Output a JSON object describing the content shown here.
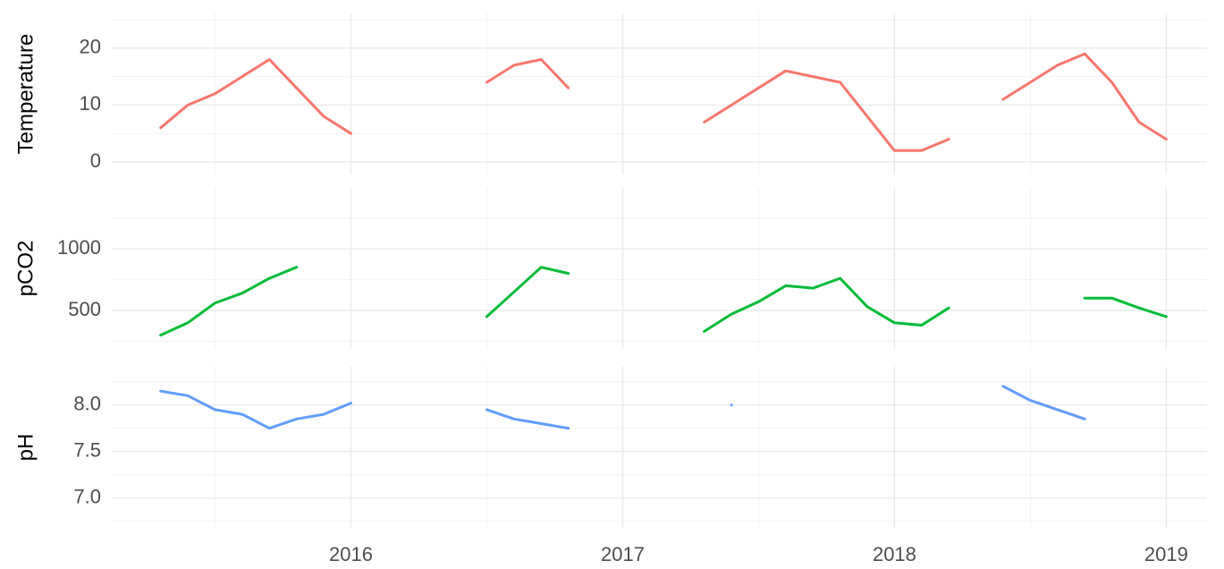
{
  "chart_data": [
    {
      "type": "line",
      "y_label": "Temperature",
      "color": "#f8766d",
      "x": [
        2015.3,
        2015.4,
        2015.5,
        2015.6,
        2015.7,
        2015.8,
        2015.9,
        2016.0,
        2016.1,
        2016.2,
        2016.3,
        2016.4,
        2016.5,
        2016.6,
        2016.7,
        2016.8,
        2016.9,
        2017.0,
        2017.1,
        2017.2,
        2017.3,
        2017.4,
        2017.5,
        2017.6,
        2017.7,
        2017.8,
        2017.9,
        2018.0,
        2018.1,
        2018.2,
        2018.3,
        2018.4,
        2018.5,
        2018.6,
        2018.7,
        2018.8,
        2018.9,
        2019.0
      ],
      "values": [
        6,
        10,
        12,
        15,
        18,
        13,
        8,
        5,
        null,
        null,
        null,
        null,
        14,
        17,
        18,
        13,
        null,
        null,
        null,
        null,
        7,
        10,
        13,
        16,
        15,
        14,
        8,
        2,
        2,
        4,
        null,
        11,
        14,
        17,
        19,
        14,
        7,
        4
      ],
      "xlim": [
        2015.12,
        2019.15
      ],
      "xticks": [
        2016,
        2017,
        2018,
        2019
      ],
      "ylim": [
        -2.2,
        26.1
      ],
      "yticks": [
        0,
        10,
        20
      ]
    },
    {
      "type": "line",
      "y_label": "pCO2",
      "color": "#00ba38",
      "x": [
        2015.3,
        2015.4,
        2015.5,
        2015.6,
        2015.7,
        2015.8,
        2015.9,
        2016.0,
        2016.1,
        2016.2,
        2016.3,
        2016.4,
        2016.5,
        2016.6,
        2016.7,
        2016.8,
        2016.9,
        2017.0,
        2017.1,
        2017.2,
        2017.3,
        2017.4,
        2017.5,
        2017.6,
        2017.7,
        2017.8,
        2017.9,
        2018.0,
        2018.1,
        2018.2,
        2018.3,
        2018.4,
        2018.5,
        2018.6,
        2018.7,
        2018.8,
        2018.9,
        2019.0
      ],
      "values": [
        300,
        400,
        560,
        640,
        760,
        850,
        null,
        null,
        null,
        null,
        null,
        null,
        450,
        650,
        850,
        800,
        null,
        null,
        null,
        null,
        330,
        470,
        570,
        700,
        680,
        760,
        530,
        400,
        380,
        520,
        null,
        null,
        null,
        null,
        600,
        600,
        520,
        450
      ],
      "xlim": [
        2015.12,
        2019.15
      ],
      "xticks": [
        2016,
        2017,
        2018,
        2019
      ],
      "ylim": [
        188,
        1493
      ],
      "yticks": [
        500,
        1000
      ]
    },
    {
      "type": "line",
      "y_label": "pH",
      "color": "#619cff",
      "x": [
        2015.3,
        2015.4,
        2015.5,
        2015.6,
        2015.7,
        2015.8,
        2015.9,
        2016.0,
        2016.1,
        2016.2,
        2016.3,
        2016.4,
        2016.5,
        2016.6,
        2016.7,
        2016.8,
        2016.9,
        2017.0,
        2017.1,
        2017.2,
        2017.3,
        2017.4,
        2017.5,
        2017.6,
        2017.7,
        2017.8,
        2017.9,
        2018.0,
        2018.1,
        2018.2,
        2018.3,
        2018.4,
        2018.5,
        2018.6,
        2018.7,
        2018.8,
        2018.9,
        2019.0
      ],
      "values": [
        8.15,
        8.1,
        7.95,
        7.9,
        7.75,
        7.85,
        7.9,
        8.02,
        null,
        null,
        null,
        null,
        7.95,
        7.85,
        7.8,
        7.75,
        null,
        null,
        null,
        null,
        null,
        8.0,
        null,
        null,
        null,
        null,
        null,
        null,
        null,
        null,
        null,
        8.2,
        8.05,
        7.95,
        7.85,
        null,
        null,
        null
      ],
      "xlim": [
        2015.12,
        2019.15
      ],
      "xticks": [
        2016,
        2017,
        2018,
        2019
      ],
      "ylim": [
        6.68,
        8.41
      ],
      "yticks": [
        {
          "value": 7,
          "label": "7.0"
        },
        {
          "value": 7.5,
          "label": "7.5"
        },
        {
          "value": 8,
          "label": "8.0"
        }
      ]
    }
  ]
}
